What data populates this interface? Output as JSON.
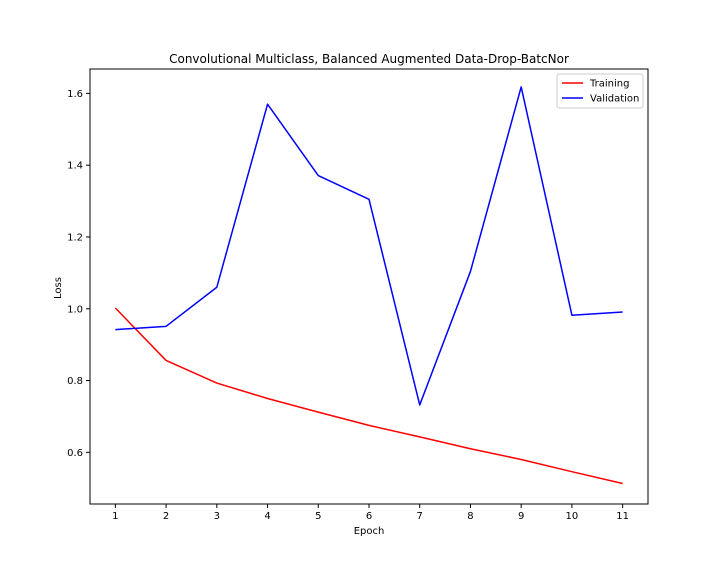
{
  "chart_data": {
    "type": "line",
    "title": "Convolutional Multiclass, Balanced Augmented Data-Drop-BatcNor",
    "xlabel": "Epoch",
    "ylabel": "Loss",
    "x": [
      1,
      2,
      3,
      4,
      5,
      6,
      7,
      8,
      9,
      10,
      11
    ],
    "xticks": [
      "1",
      "2",
      "3",
      "4",
      "5",
      "6",
      "7",
      "8",
      "9",
      "10",
      "11"
    ],
    "yticks": [
      "0.6",
      "0.8",
      "1.0",
      "1.2",
      "1.4",
      "1.6"
    ],
    "xlim": [
      0.5,
      11.5
    ],
    "ylim": [
      0.456,
      1.668
    ],
    "grid": false,
    "legend_position": "top-right",
    "series": [
      {
        "name": "Training",
        "color": "#ff0000",
        "values": [
          1.002,
          0.856,
          0.793,
          0.75,
          0.712,
          0.675,
          0.643,
          0.61,
          0.58,
          0.546,
          0.513
        ]
      },
      {
        "name": "Validation",
        "color": "#0000ff",
        "values": [
          0.942,
          0.951,
          1.06,
          1.57,
          1.371,
          1.305,
          0.732,
          1.104,
          1.618,
          0.982,
          0.991
        ]
      }
    ]
  }
}
